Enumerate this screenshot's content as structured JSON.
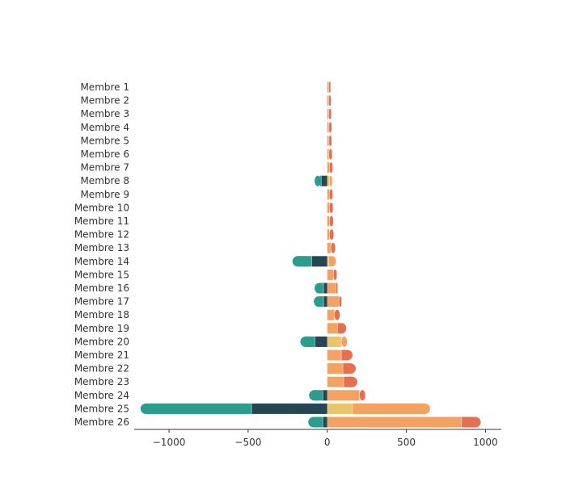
{
  "chart_data": {
    "type": "bar",
    "orientation": "horizontal",
    "stacked": "diverging",
    "categories": [
      "Membre 1",
      "Membre 2",
      "Membre 3",
      "Membre 4",
      "Membre 5",
      "Membre 6",
      "Membre 7",
      "Membre 8",
      "Membre 9",
      "Membre 10",
      "Membre 11",
      "Membre 12",
      "Membre 13",
      "Membre 14",
      "Membre 15",
      "Membre 16",
      "Membre 17",
      "Membre 18",
      "Membre 19",
      "Membre 20",
      "Membre 21",
      "Membre 22",
      "Membre 23",
      "Membre 24",
      "Membre 25",
      "Membre 26"
    ],
    "series": [
      {
        "color": "#264653",
        "values": [
          0,
          0,
          0,
          0,
          0,
          0,
          0,
          -40,
          0,
          0,
          0,
          0,
          0,
          -100,
          0,
          -25,
          -25,
          0,
          0,
          -80,
          0,
          0,
          0,
          -30,
          -480,
          -30
        ]
      },
      {
        "color": "#2a9d8f",
        "values": [
          0,
          0,
          0,
          0,
          0,
          0,
          0,
          -40,
          0,
          0,
          0,
          0,
          0,
          -120,
          0,
          -55,
          -60,
          0,
          0,
          -90,
          0,
          0,
          0,
          -85,
          -700,
          -90
        ]
      },
      {
        "color": "#e9c46a",
        "values": [
          0,
          0,
          0,
          0,
          0,
          0,
          0,
          15,
          0,
          0,
          0,
          0,
          0,
          10,
          0,
          0,
          0,
          0,
          0,
          90,
          0,
          0,
          0,
          0,
          160,
          0
        ]
      },
      {
        "color": "#f4a261",
        "values": [
          10,
          10,
          10,
          12,
          12,
          12,
          15,
          15,
          15,
          15,
          15,
          15,
          25,
          45,
          40,
          55,
          75,
          45,
          65,
          35,
          90,
          100,
          105,
          205,
          490,
          850
        ]
      },
      {
        "color": "#e76f51",
        "values": [
          10,
          12,
          15,
          15,
          15,
          18,
          18,
          0,
          18,
          20,
          22,
          25,
          25,
          0,
          20,
          10,
          15,
          35,
          55,
          0,
          70,
          80,
          85,
          35,
          0,
          120
        ]
      }
    ],
    "xlim": [
      -1220,
      1100
    ],
    "xticks": [
      -1000,
      -500,
      0,
      500,
      1000
    ],
    "xtick_labels": [
      "−1000",
      "−500",
      "0",
      "500",
      "1000"
    ],
    "grid": false,
    "legend": "none"
  }
}
